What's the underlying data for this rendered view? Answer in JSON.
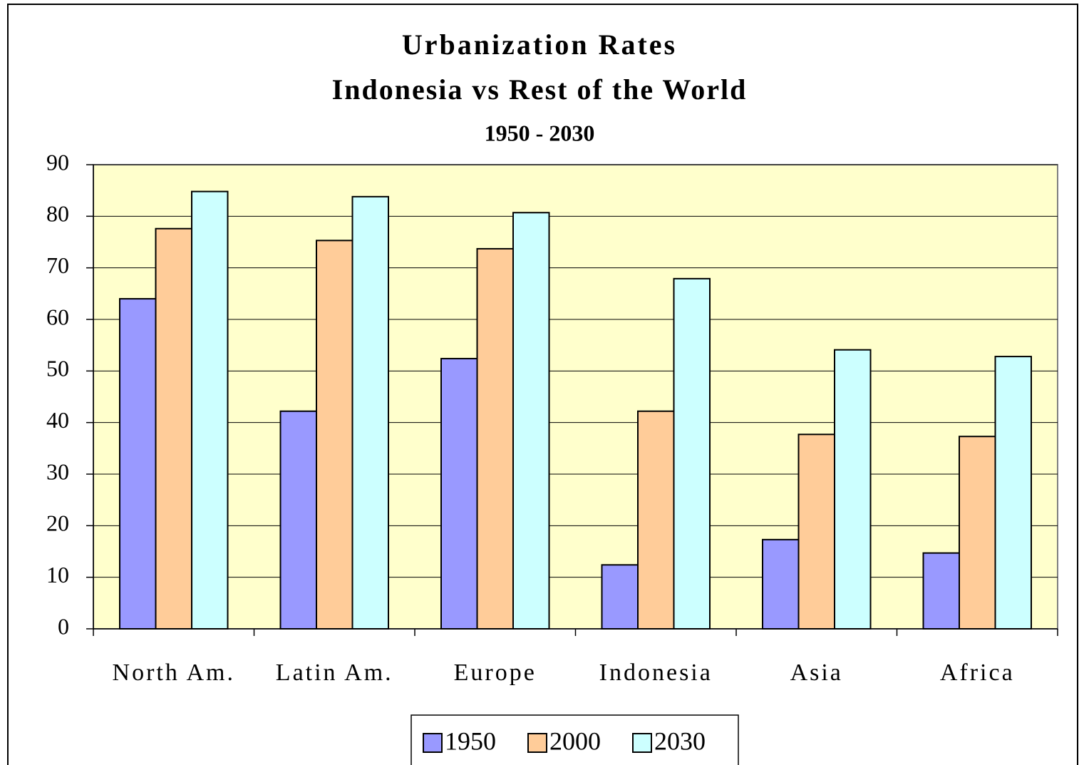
{
  "chart_data": {
    "type": "bar",
    "title": "Urbanization Rates",
    "subtitles": [
      "Indonesia vs Rest of the World",
      "1950 - 2030"
    ],
    "categories": [
      "North Am.",
      "Latin Am.",
      "Europe",
      "Indonesia",
      "Asia",
      "Africa"
    ],
    "series": [
      {
        "name": "1950",
        "color": "#9999ff",
        "values": [
          64,
          42.2,
          52.4,
          12.4,
          17.3,
          14.7
        ]
      },
      {
        "name": "2000",
        "color": "#ffcc99",
        "values": [
          77.6,
          75.3,
          73.7,
          42.2,
          37.7,
          37.3
        ]
      },
      {
        "name": "2030",
        "color": "#ccffff",
        "values": [
          84.8,
          83.8,
          80.7,
          67.9,
          54.1,
          52.8
        ]
      }
    ],
    "ylim": [
      0,
      90
    ],
    "yticks": [
      0,
      10,
      20,
      30,
      40,
      50,
      60,
      70,
      80,
      90
    ],
    "grid": true,
    "plot_background": "#ffffcc",
    "legend": "bottom"
  }
}
